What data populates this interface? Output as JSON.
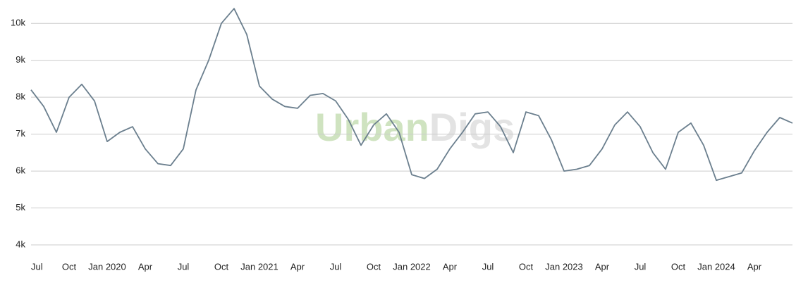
{
  "chart_data": {
    "type": "line",
    "watermark": {
      "part1": "Urban",
      "part2": "Digs"
    },
    "categories": [
      "Jul",
      null,
      null,
      "Oct",
      null,
      null,
      "Jan 2020",
      null,
      null,
      "Apr",
      null,
      null,
      "Jul",
      null,
      null,
      "Oct",
      null,
      null,
      "Jan 2021",
      null,
      null,
      "Apr",
      null,
      null,
      "Jul",
      null,
      null,
      "Oct",
      null,
      null,
      "Jan 2022",
      null,
      null,
      "Apr",
      null,
      null,
      "Jul",
      null,
      null,
      "Oct",
      null,
      null,
      "Jan 2023",
      null,
      null,
      "Apr",
      null,
      null,
      "Jul",
      null,
      null,
      "Oct",
      null,
      null,
      "Jan 2024",
      null,
      null,
      "Apr",
      null,
      null,
      null
    ],
    "series": [
      {
        "color": "#6b7f8e",
        "values": [
          8200,
          7750,
          7050,
          8000,
          8350,
          7900,
          6800,
          7050,
          7200,
          6600,
          6200,
          6150,
          6600,
          8200,
          9000,
          10000,
          10400,
          9700,
          8300,
          7950,
          7750,
          7700,
          8050,
          8100,
          7900,
          7400,
          6700,
          7250,
          7550,
          7050,
          5900,
          5800,
          6050,
          6600,
          7050,
          7550,
          7600,
          7200,
          6500,
          7600,
          7500,
          6850,
          6000,
          6050,
          6150,
          6600,
          7250,
          7600,
          7200,
          6500,
          6050,
          7050,
          7300,
          6700,
          5750,
          5850,
          5950,
          6550,
          7050,
          7450,
          7300
        ]
      }
    ],
    "ylim": [
      3600,
      10500
    ],
    "yticks": [
      {
        "value": 4000,
        "label": "4k"
      },
      {
        "value": 5000,
        "label": "5k"
      },
      {
        "value": 6000,
        "label": "6k"
      },
      {
        "value": 7000,
        "label": "7k"
      },
      {
        "value": 8000,
        "label": "8k"
      },
      {
        "value": 9000,
        "label": "9k"
      },
      {
        "value": 10000,
        "label": "10k"
      }
    ],
    "grid": true
  }
}
